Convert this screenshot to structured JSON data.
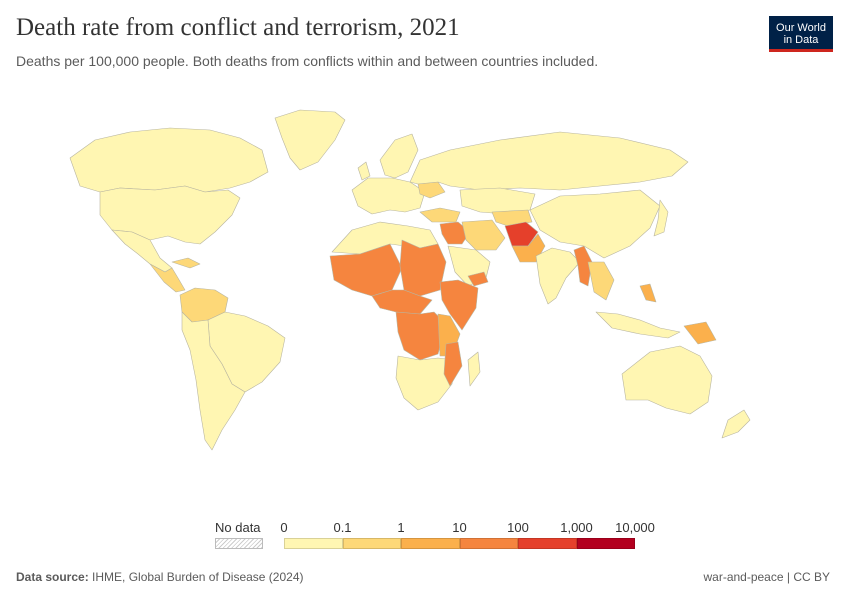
{
  "header": {
    "title": "Death rate from conflict and terrorism, 2021",
    "subtitle": "Deaths per 100,000 people. Both deaths from conflicts within and between countries included."
  },
  "logo": {
    "line1": "Our World",
    "line2": "in Data"
  },
  "legend": {
    "no_data_label": "No data",
    "ticks": [
      "0",
      "0.1",
      "1",
      "10",
      "100",
      "1,000",
      "10,000"
    ],
    "bins": [
      {
        "from": "0",
        "to": "0.1",
        "color": "#fff6b2"
      },
      {
        "from": "0.1",
        "to": "1",
        "color": "#fdd878"
      },
      {
        "from": "1",
        "to": "10",
        "color": "#fbb04c"
      },
      {
        "from": "10",
        "to": "100",
        "color": "#f5853f"
      },
      {
        "from": "100",
        "to": "1,000",
        "color": "#e5402b"
      },
      {
        "from": "1,000",
        "to": "10,000",
        "color": "#b3001f"
      }
    ]
  },
  "map_colors": {
    "low": "#fff6b2",
    "low_mid": "#fdd878",
    "mid": "#fbb04c",
    "high": "#f5853f",
    "very_high": "#e5402b",
    "border": "#b8b5a0"
  },
  "footer": {
    "source_label": "Data source:",
    "source_text": "IHME, Global Burden of Disease (2024)",
    "license": "war-and-peace | CC BY"
  }
}
